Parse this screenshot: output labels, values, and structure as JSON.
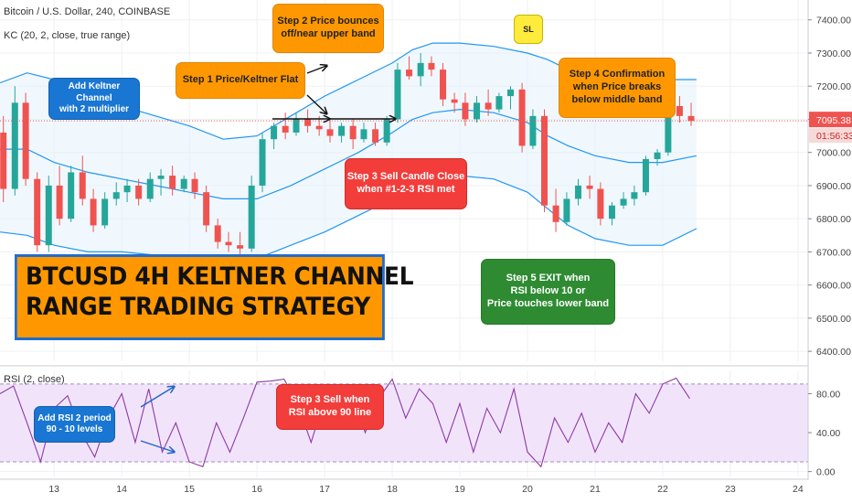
{
  "header": {
    "symbol_line": "Bitcoin / U.S. Dollar, 240, COINBASE",
    "kc_line": "KC (20, 2, close, true range)",
    "rsi_line": "RSI (2, close)"
  },
  "title": {
    "line1": "BTCUSD 4H KELTNER CHANNEL",
    "line2": "RANGE TRADING STRATEGY"
  },
  "callouts": {
    "kc_note": [
      "Add Keltner Channel",
      "with 2 multiplier"
    ],
    "step1": [
      "Step 1 Price/Keltner Flat"
    ],
    "step2": [
      "Step 2 Price bounces",
      "off/near upper band"
    ],
    "step3": [
      "Step 3 Sell Candle Close",
      "when #1-2-3 RSI met"
    ],
    "step4": [
      "Step 4 Confirmation",
      "when Price breaks",
      "below middle band"
    ],
    "step5": [
      "Step 5 EXIT when",
      "RSI below 10 or",
      "Price touches lower band"
    ],
    "rsi_note": [
      "Add RSI 2 period",
      "90 - 10 levels"
    ],
    "rsi_sell": [
      "Step 3 Sell when",
      "RSI above 90 line"
    ],
    "sl": "SL"
  },
  "price_axis": {
    "current_price": "7095.38",
    "countdown": "01:56:33"
  },
  "colors": {
    "up": "#26a69a",
    "down": "#ef5350",
    "band": "#2196f3",
    "rsi_line": "#8e3aa6",
    "rsi_fill": "#f1e4fa",
    "price_line": "#ef5350"
  },
  "chart_data": [
    {
      "type": "candlestick",
      "title": "Bitcoin / U.S. Dollar, 240, COINBASE",
      "y_ticks": [
        6400,
        6500,
        6600,
        6700,
        6800,
        6900,
        7000,
        7100,
        7200,
        7300,
        7400
      ],
      "y_tick_labels": [
        "6400.00",
        "6500.00",
        "6600.00",
        "6700.00",
        "6800.00",
        "6900.00",
        "7000.00",
        "7100.00",
        "7200.00",
        "7300.00",
        "7400.00"
      ],
      "ylim": [
        6370,
        7460
      ],
      "x_ticks": [
        13,
        14,
        15,
        16,
        17,
        18,
        19,
        20,
        21,
        22,
        23,
        24
      ],
      "x_tick_labels": [
        "13",
        "14",
        "15",
        "16",
        "17",
        "18",
        "19",
        "20",
        "21",
        "22",
        "23",
        "24"
      ],
      "xlim": [
        12.2,
        24.15
      ],
      "current_price": 7095.38,
      "candles": [
        {
          "t": 12.25,
          "o": 7060,
          "h": 7110,
          "l": 6850,
          "c": 6890
        },
        {
          "t": 12.42,
          "o": 6890,
          "h": 7200,
          "l": 6870,
          "c": 7150
        },
        {
          "t": 12.58,
          "o": 7150,
          "h": 7180,
          "l": 6900,
          "c": 6920
        },
        {
          "t": 12.75,
          "o": 6920,
          "h": 6940,
          "l": 6700,
          "c": 6720
        },
        {
          "t": 12.92,
          "o": 6720,
          "h": 6930,
          "l": 6700,
          "c": 6900
        },
        {
          "t": 13.08,
          "o": 6900,
          "h": 6960,
          "l": 6780,
          "c": 6800
        },
        {
          "t": 13.25,
          "o": 6800,
          "h": 6960,
          "l": 6790,
          "c": 6940
        },
        {
          "t": 13.42,
          "o": 6940,
          "h": 6990,
          "l": 6840,
          "c": 6860
        },
        {
          "t": 13.58,
          "o": 6860,
          "h": 6890,
          "l": 6760,
          "c": 6780
        },
        {
          "t": 13.75,
          "o": 6780,
          "h": 6880,
          "l": 6770,
          "c": 6860
        },
        {
          "t": 13.92,
          "o": 6860,
          "h": 6910,
          "l": 6840,
          "c": 6880
        },
        {
          "t": 14.08,
          "o": 6880,
          "h": 6920,
          "l": 6850,
          "c": 6900
        },
        {
          "t": 14.25,
          "o": 6900,
          "h": 6920,
          "l": 6840,
          "c": 6860
        },
        {
          "t": 14.42,
          "o": 6860,
          "h": 6940,
          "l": 6850,
          "c": 6920
        },
        {
          "t": 14.58,
          "o": 6920,
          "h": 6950,
          "l": 6870,
          "c": 6930
        },
        {
          "t": 14.75,
          "o": 6930,
          "h": 6960,
          "l": 6870,
          "c": 6890
        },
        {
          "t": 14.92,
          "o": 6890,
          "h": 6930,
          "l": 6880,
          "c": 6920
        },
        {
          "t": 15.08,
          "o": 6920,
          "h": 6940,
          "l": 6860,
          "c": 6880
        },
        {
          "t": 15.25,
          "o": 6880,
          "h": 6900,
          "l": 6760,
          "c": 6780
        },
        {
          "t": 15.42,
          "o": 6780,
          "h": 6800,
          "l": 6710,
          "c": 6730
        },
        {
          "t": 15.58,
          "o": 6730,
          "h": 6760,
          "l": 6700,
          "c": 6720
        },
        {
          "t": 15.75,
          "o": 6720,
          "h": 6760,
          "l": 6690,
          "c": 6710
        },
        {
          "t": 15.92,
          "o": 6710,
          "h": 6930,
          "l": 6700,
          "c": 6900
        },
        {
          "t": 16.08,
          "o": 6900,
          "h": 7060,
          "l": 6880,
          "c": 7040
        },
        {
          "t": 16.25,
          "o": 7040,
          "h": 7090,
          "l": 7010,
          "c": 7080
        },
        {
          "t": 16.42,
          "o": 7080,
          "h": 7120,
          "l": 7040,
          "c": 7060
        },
        {
          "t": 16.58,
          "o": 7060,
          "h": 7120,
          "l": 7050,
          "c": 7100
        },
        {
          "t": 16.75,
          "o": 7100,
          "h": 7130,
          "l": 7060,
          "c": 7080
        },
        {
          "t": 16.92,
          "o": 7080,
          "h": 7110,
          "l": 7050,
          "c": 7070
        },
        {
          "t": 17.08,
          "o": 7070,
          "h": 7100,
          "l": 7030,
          "c": 7050
        },
        {
          "t": 17.25,
          "o": 7050,
          "h": 7090,
          "l": 7030,
          "c": 7080
        },
        {
          "t": 17.42,
          "o": 7080,
          "h": 7100,
          "l": 7010,
          "c": 7040
        },
        {
          "t": 17.58,
          "o": 7040,
          "h": 7090,
          "l": 7030,
          "c": 7070
        },
        {
          "t": 17.75,
          "o": 7070,
          "h": 7090,
          "l": 7020,
          "c": 7030
        },
        {
          "t": 17.92,
          "o": 7030,
          "h": 7110,
          "l": 7020,
          "c": 7100
        },
        {
          "t": 18.08,
          "o": 7100,
          "h": 7270,
          "l": 7090,
          "c": 7250
        },
        {
          "t": 18.25,
          "o": 7250,
          "h": 7290,
          "l": 7220,
          "c": 7230
        },
        {
          "t": 18.42,
          "o": 7230,
          "h": 7300,
          "l": 7200,
          "c": 7270
        },
        {
          "t": 18.58,
          "o": 7270,
          "h": 7290,
          "l": 7230,
          "c": 7250
        },
        {
          "t": 18.75,
          "o": 7250,
          "h": 7270,
          "l": 7140,
          "c": 7160
        },
        {
          "t": 18.92,
          "o": 7160,
          "h": 7180,
          "l": 7120,
          "c": 7150
        },
        {
          "t": 19.08,
          "o": 7150,
          "h": 7180,
          "l": 7080,
          "c": 7100
        },
        {
          "t": 19.25,
          "o": 7100,
          "h": 7170,
          "l": 7090,
          "c": 7150
        },
        {
          "t": 19.42,
          "o": 7150,
          "h": 7190,
          "l": 7110,
          "c": 7130
        },
        {
          "t": 19.58,
          "o": 7130,
          "h": 7180,
          "l": 7120,
          "c": 7170
        },
        {
          "t": 19.75,
          "o": 7170,
          "h": 7200,
          "l": 7130,
          "c": 7190
        },
        {
          "t": 19.92,
          "o": 7190,
          "h": 7210,
          "l": 7000,
          "c": 7020
        },
        {
          "t": 20.08,
          "o": 7020,
          "h": 7130,
          "l": 7010,
          "c": 7110
        },
        {
          "t": 20.25,
          "o": 7110,
          "h": 7130,
          "l": 6820,
          "c": 6840
        },
        {
          "t": 20.42,
          "o": 6840,
          "h": 6890,
          "l": 6760,
          "c": 6790
        },
        {
          "t": 20.58,
          "o": 6790,
          "h": 6880,
          "l": 6780,
          "c": 6860
        },
        {
          "t": 20.75,
          "o": 6860,
          "h": 6920,
          "l": 6840,
          "c": 6900
        },
        {
          "t": 20.92,
          "o": 6900,
          "h": 6930,
          "l": 6860,
          "c": 6890
        },
        {
          "t": 21.08,
          "o": 6890,
          "h": 6910,
          "l": 6780,
          "c": 6800
        },
        {
          "t": 21.25,
          "o": 6800,
          "h": 6850,
          "l": 6780,
          "c": 6840
        },
        {
          "t": 21.42,
          "o": 6840,
          "h": 6880,
          "l": 6830,
          "c": 6860
        },
        {
          "t": 21.58,
          "o": 6860,
          "h": 6900,
          "l": 6840,
          "c": 6880
        },
        {
          "t": 21.75,
          "o": 6880,
          "h": 6990,
          "l": 6870,
          "c": 6980
        },
        {
          "t": 21.92,
          "o": 6980,
          "h": 7010,
          "l": 6960,
          "c": 7000
        },
        {
          "t": 22.08,
          "o": 7000,
          "h": 7160,
          "l": 6990,
          "c": 7140
        },
        {
          "t": 22.25,
          "o": 7140,
          "h": 7170,
          "l": 7090,
          "c": 7110
        },
        {
          "t": 22.42,
          "o": 7110,
          "h": 7150,
          "l": 7080,
          "c": 7095
        }
      ],
      "upper_band": {
        "x": [
          12.2,
          12.6,
          13.0,
          13.5,
          14.0,
          14.5,
          15.0,
          15.5,
          16.0,
          16.5,
          17.0,
          17.5,
          18.0,
          18.3,
          18.6,
          19.0,
          19.5,
          20.0,
          20.3,
          20.6,
          21.0,
          21.5,
          22.0,
          22.5
        ],
        "y": [
          7210,
          7240,
          7220,
          7200,
          7140,
          7110,
          7080,
          7040,
          7050,
          7110,
          7170,
          7220,
          7270,
          7310,
          7330,
          7330,
          7320,
          7300,
          7280,
          7250,
          7230,
          7220,
          7220,
          7220
        ]
      },
      "middle_band": {
        "x": [
          12.2,
          12.6,
          13.0,
          13.5,
          14.0,
          14.5,
          15.0,
          15.5,
          16.0,
          16.5,
          17.0,
          17.5,
          18.0,
          18.3,
          18.6,
          19.0,
          19.5,
          20.0,
          20.3,
          20.6,
          21.0,
          21.5,
          22.0,
          22.5
        ],
        "y": [
          7010,
          7010,
          6970,
          6940,
          6920,
          6900,
          6880,
          6860,
          6860,
          6900,
          6950,
          7000,
          7060,
          7100,
          7120,
          7130,
          7120,
          7090,
          7050,
          7020,
          6990,
          6970,
          6970,
          6990
        ]
      },
      "lower_band": {
        "x": [
          12.2,
          12.6,
          13.0,
          13.5,
          14.0,
          14.5,
          15.0,
          15.5,
          16.0,
          16.5,
          17.0,
          17.5,
          18.0,
          18.3,
          18.6,
          19.0,
          19.5,
          20.0,
          20.3,
          20.6,
          21.0,
          21.5,
          22.0,
          22.5
        ],
        "y": [
          6760,
          6750,
          6720,
          6700,
          6700,
          6690,
          6670,
          6660,
          6680,
          6720,
          6760,
          6810,
          6860,
          6900,
          6930,
          6930,
          6920,
          6880,
          6830,
          6780,
          6740,
          6720,
          6720,
          6770
        ]
      }
    },
    {
      "type": "line",
      "title": "RSI (2, close)",
      "y_ticks": [
        0,
        40,
        80
      ],
      "y_tick_labels": [
        "0.00",
        "40.00",
        "80.00"
      ],
      "ylim": [
        -6,
        104
      ],
      "levels": [
        90,
        10
      ],
      "x": [
        12.2,
        12.4,
        12.6,
        12.8,
        13.0,
        13.2,
        13.4,
        13.6,
        13.8,
        14.0,
        14.2,
        14.4,
        14.6,
        14.8,
        15.0,
        15.2,
        15.4,
        15.6,
        15.8,
        16.0,
        16.2,
        16.4,
        16.6,
        16.8,
        17.0,
        17.2,
        17.4,
        17.6,
        17.8,
        18.0,
        18.2,
        18.4,
        18.6,
        18.8,
        19.0,
        19.2,
        19.4,
        19.6,
        19.8,
        20.0,
        20.2,
        20.4,
        20.6,
        20.8,
        21.0,
        21.2,
        21.4,
        21.6,
        21.8,
        22.0,
        22.2,
        22.4
      ],
      "y": [
        80,
        88,
        50,
        10,
        65,
        78,
        40,
        15,
        55,
        80,
        30,
        85,
        20,
        50,
        10,
        5,
        50,
        20,
        55,
        92,
        93,
        95,
        70,
        30,
        75,
        45,
        80,
        40,
        75,
        95,
        55,
        85,
        70,
        30,
        70,
        20,
        65,
        40,
        85,
        20,
        5,
        55,
        30,
        60,
        20,
        50,
        30,
        80,
        60,
        90,
        96,
        75
      ]
    }
  ]
}
